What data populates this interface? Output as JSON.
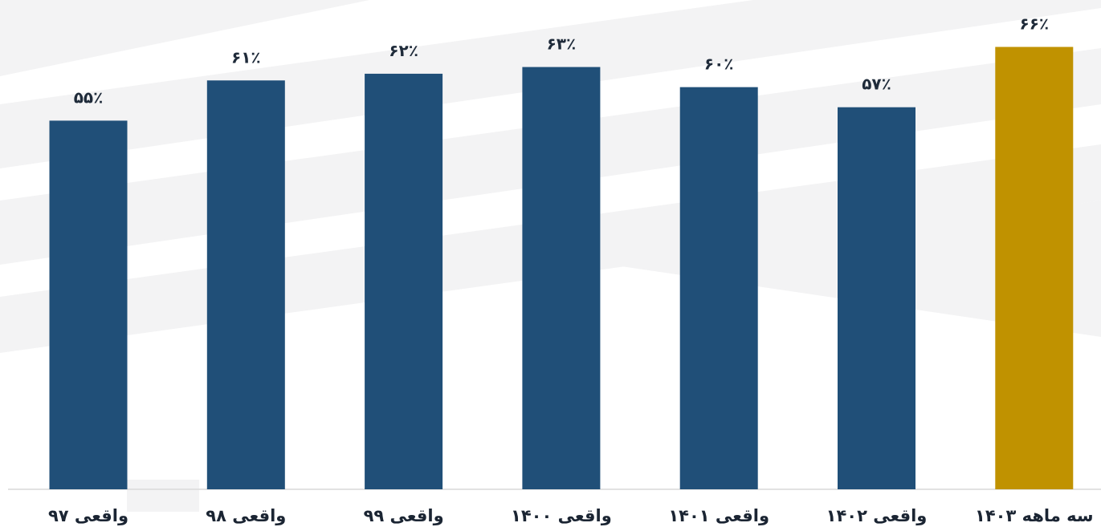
{
  "chart_data": {
    "type": "bar",
    "categories": [
      "واقعی ۹۷",
      "واقعی ۹۸",
      "واقعی ۹۹",
      "واقعی ۱۴۰۰",
      "واقعی ۱۴۰۱",
      "واقعی ۱۴۰۲",
      "سه ماهه ۱۴۰۳"
    ],
    "values": [
      55,
      61,
      62,
      63,
      60,
      57,
      66
    ],
    "value_labels": [
      "۵۵٪",
      "۶۱٪",
      "۶۲٪",
      "۶۳٪",
      "۶۰٪",
      "۵۷٪",
      "۶۶٪"
    ],
    "bar_colors": [
      "#204f78",
      "#204f78",
      "#204f78",
      "#204f78",
      "#204f78",
      "#204f78",
      "#c09200"
    ],
    "ylim": [
      0,
      73
    ],
    "grid": false,
    "title": "",
    "xlabel": "",
    "ylabel": ""
  }
}
